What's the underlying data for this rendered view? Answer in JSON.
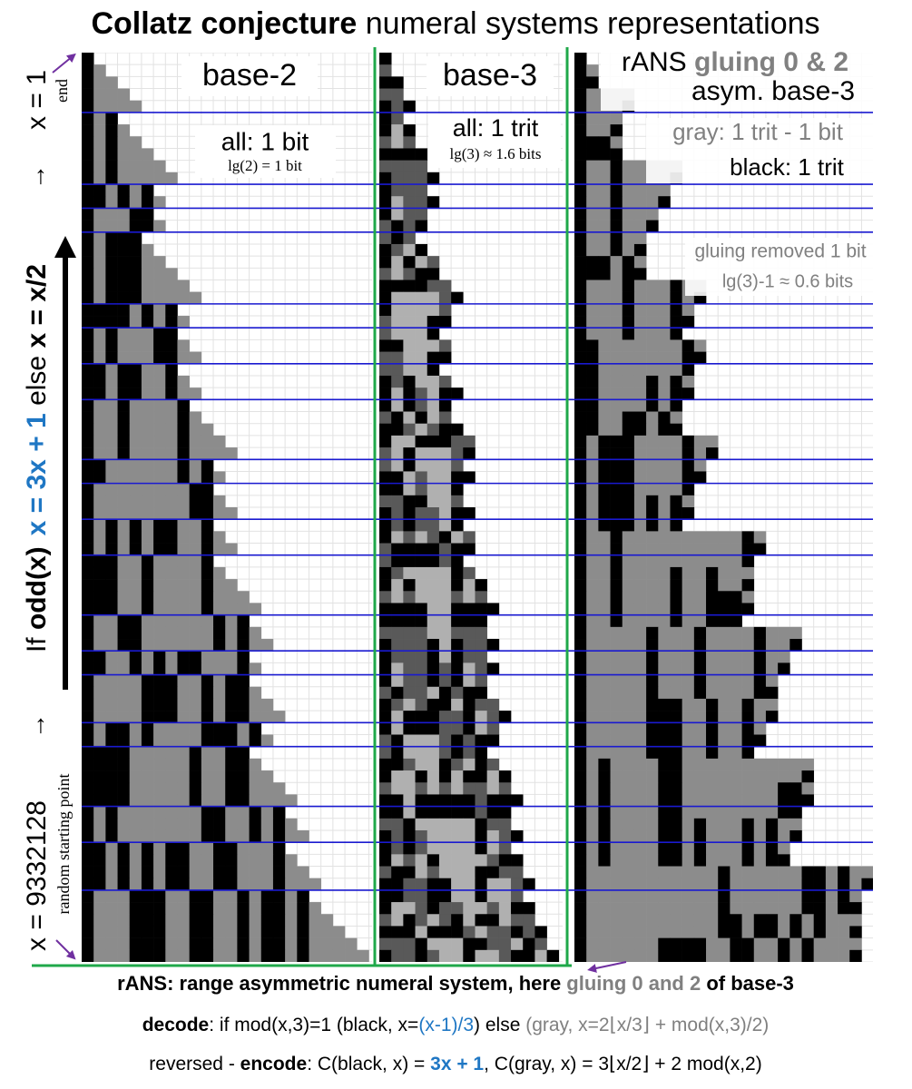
{
  "title": {
    "bold": "Collatz conjecture",
    "rest": " numeral systems representations"
  },
  "side": {
    "start": "x = 9332128",
    "start_note": "random starting point",
    "arrow_low": "→",
    "if": "If ",
    "odd": "odd(x)",
    "odd_branch": "x = 3x + 1",
    "else": " else ",
    "even_branch": "x = x/2",
    "arrow_high": "→",
    "end": "x = 1",
    "end_note": "end"
  },
  "panels": {
    "base2": {
      "label": "base-2",
      "line1": "all: 1 bit",
      "line2": "lg(2) = 1 bit"
    },
    "base3": {
      "label": "base-3",
      "line1": "all: 1 trit",
      "line2": "lg(3) ≈ 1.6 bits"
    },
    "rans": {
      "label_a": "rANS ",
      "label_b": "gluing 0 & 2",
      "label2": "asym. base-3",
      "gray": "gray: 1 trit - 1 bit",
      "black": "black: 1 trit",
      "removed": "gluing removed 1 bit",
      "removed_bits": "lg(3)-1 ≈ 0.6 bits"
    }
  },
  "footer": {
    "line1": {
      "a": "rANS: range asymmetric numeral system, here ",
      "b": "gluing 0 and 2",
      "c": " of base-3"
    },
    "line2": {
      "a": "decode",
      "b": ": if mod(x,3)=1 (black, x=",
      "c": "(x-1)/3",
      "d": ") else ",
      "e": "(gray, x=2⌊x/3⌋ + mod(x,3)/2)"
    },
    "line3": {
      "a": "reversed - ",
      "b": "encode",
      "c": ": C(black, x) = ",
      "d": "3x + 1",
      "e": ", C(gray, x) = 3⌊x/2⌋ + 2 mod(x,2)"
    }
  }
}
